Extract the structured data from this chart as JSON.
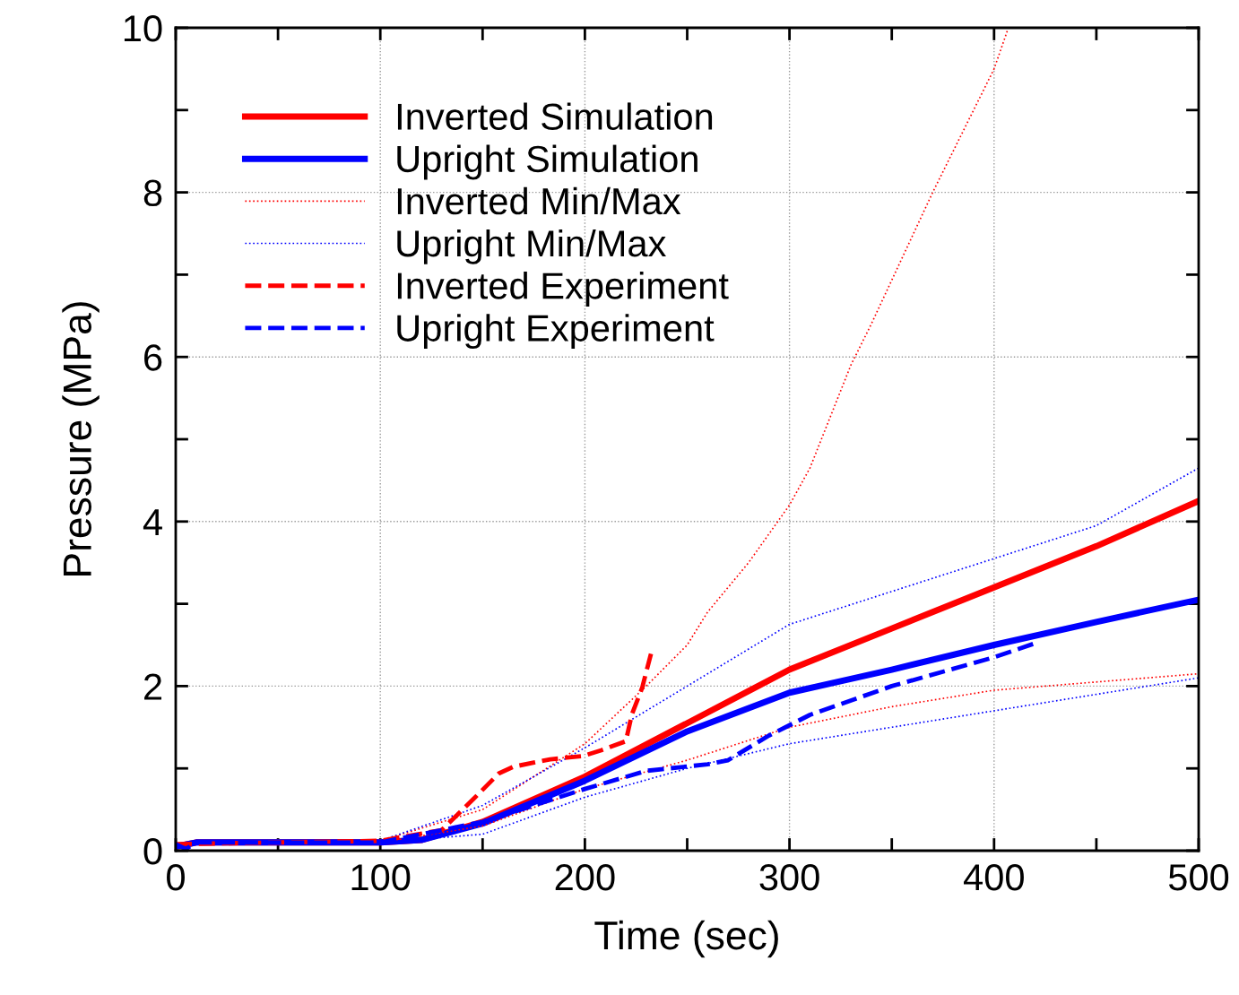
{
  "chart_data": {
    "type": "line",
    "xlabel": "Time (sec)",
    "ylabel": "Pressure (MPa)",
    "xlim": [
      0,
      500
    ],
    "ylim": [
      0,
      10
    ],
    "xticks": [
      0,
      {
        "value": 50,
        "label": null
      },
      100,
      {
        "value": 150,
        "label": null
      },
      200,
      {
        "value": 250,
        "label": null
      },
      300,
      {
        "value": 350,
        "label": null
      },
      400,
      {
        "value": 450,
        "label": null
      },
      500
    ],
    "yticks": [
      0,
      {
        "value": 1,
        "label": null
      },
      2,
      {
        "value": 3,
        "label": null
      },
      4,
      {
        "value": 5,
        "label": null
      },
      6,
      {
        "value": 7,
        "label": null
      },
      8,
      {
        "value": 9,
        "label": null
      },
      10
    ],
    "grid": true,
    "legend": "top left",
    "series": [
      {
        "name": "Inverted Simulation",
        "color": "#ff0000",
        "line_style": "solid",
        "x": [
          0,
          10,
          100,
          120,
          150,
          200,
          250,
          300,
          350,
          400,
          450,
          500
        ],
        "values": [
          0.05,
          0.1,
          0.1,
          0.13,
          0.35,
          0.9,
          1.55,
          2.2,
          2.7,
          3.2,
          3.7,
          4.25
        ]
      },
      {
        "name": "Upright Simulation",
        "color": "#0000ff",
        "line_style": "solid",
        "x": [
          0,
          10,
          100,
          120,
          150,
          200,
          250,
          300,
          350,
          400,
          450,
          500
        ],
        "values": [
          0.05,
          0.1,
          0.1,
          0.13,
          0.33,
          0.85,
          1.45,
          1.92,
          2.2,
          2.5,
          2.78,
          3.05
        ]
      },
      {
        "name": "Inverted Min/Max",
        "color": "#ff0000",
        "line_style": "dotted",
        "x": [
          100,
          150,
          200,
          230,
          250,
          260,
          280,
          300,
          310,
          330,
          340,
          370,
          400,
          407
        ],
        "values": [
          0.12,
          0.5,
          1.3,
          2.0,
          2.5,
          2.9,
          3.5,
          4.2,
          4.65,
          5.9,
          6.4,
          8.0,
          9.5,
          10.0
        ]
      },
      {
        "name": null,
        "color": "#ff0000",
        "line_style": "dotted",
        "x": [
          100,
          150,
          200,
          250,
          300,
          350,
          400,
          450,
          500
        ],
        "values": [
          0.1,
          0.3,
          0.75,
          1.1,
          1.5,
          1.75,
          1.95,
          2.05,
          2.15
        ]
      },
      {
        "name": "Upright Min/Max",
        "color": "#0000ff",
        "line_style": "dotted",
        "x": [
          100,
          150,
          200,
          240,
          250,
          300,
          350,
          400,
          450,
          500
        ],
        "values": [
          0.12,
          0.55,
          1.25,
          1.85,
          2.0,
          2.75,
          3.15,
          3.55,
          3.95,
          4.65
        ]
      },
      {
        "name": null,
        "color": "#0000ff",
        "line_style": "dotted",
        "x": [
          100,
          150,
          200,
          250,
          300,
          350,
          400,
          450,
          500
        ],
        "values": [
          0.1,
          0.2,
          0.65,
          1.0,
          1.3,
          1.5,
          1.7,
          1.9,
          2.1
        ]
      },
      {
        "name": "Inverted Experiment",
        "color": "#ff0000",
        "line_style": "dashed",
        "x": [
          0,
          100,
          130,
          146,
          158,
          165,
          183,
          199,
          208,
          220,
          223,
          228,
          233
        ],
        "values": [
          0.08,
          0.12,
          0.25,
          0.64,
          0.94,
          1.02,
          1.11,
          1.15,
          1.22,
          1.33,
          1.66,
          1.98,
          2.46
        ]
      },
      {
        "name": "Upright Experiment",
        "color": "#0000ff",
        "line_style": "dashed",
        "x": [
          0,
          5,
          10,
          100,
          150,
          200,
          230,
          260,
          270,
          290,
          310,
          350,
          400,
          420
        ],
        "values": [
          0.08,
          0.02,
          0.1,
          0.1,
          0.35,
          0.75,
          0.97,
          1.05,
          1.1,
          1.4,
          1.65,
          2.0,
          2.35,
          2.52
        ]
      }
    ]
  }
}
